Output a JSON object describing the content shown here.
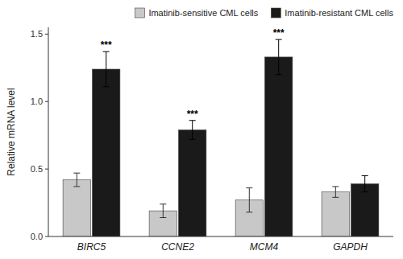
{
  "chart_data": {
    "type": "bar",
    "categories": [
      "BIRC5",
      "CCNE2",
      "MCM4",
      "GAPDH"
    ],
    "series": [
      {
        "name": "Imatinib-sensitive CML cells",
        "color": "#c8c8c8",
        "values": [
          0.42,
          0.19,
          0.27,
          0.33
        ],
        "errors": [
          0.05,
          0.05,
          0.09,
          0.04
        ]
      },
      {
        "name": "Imatinib-resistant CML cells",
        "color": "#1a1a1a",
        "values": [
          1.24,
          0.79,
          1.33,
          0.39
        ],
        "errors": [
          0.13,
          0.07,
          0.13,
          0.06
        ]
      }
    ],
    "y_label": "Relative mRNA level",
    "ylim": [
      0,
      1.55
    ],
    "yticks": [
      {
        "value": 0.0,
        "label": "0.0"
      },
      0.5,
      {
        "value": 1.0,
        "label": "1.0"
      },
      1.5
    ],
    "annotations": [
      {
        "text": "***",
        "category": "BIRC5",
        "series": "Imatinib-resistant CML cells"
      },
      {
        "text": "***",
        "category": "CCNE2",
        "series": "Imatinib-resistant CML cells"
      },
      {
        "text": "***",
        "category": "MCM4",
        "series": "Imatinib-resistant CML cells"
      }
    ],
    "legend": "upper right",
    "grid": false
  }
}
